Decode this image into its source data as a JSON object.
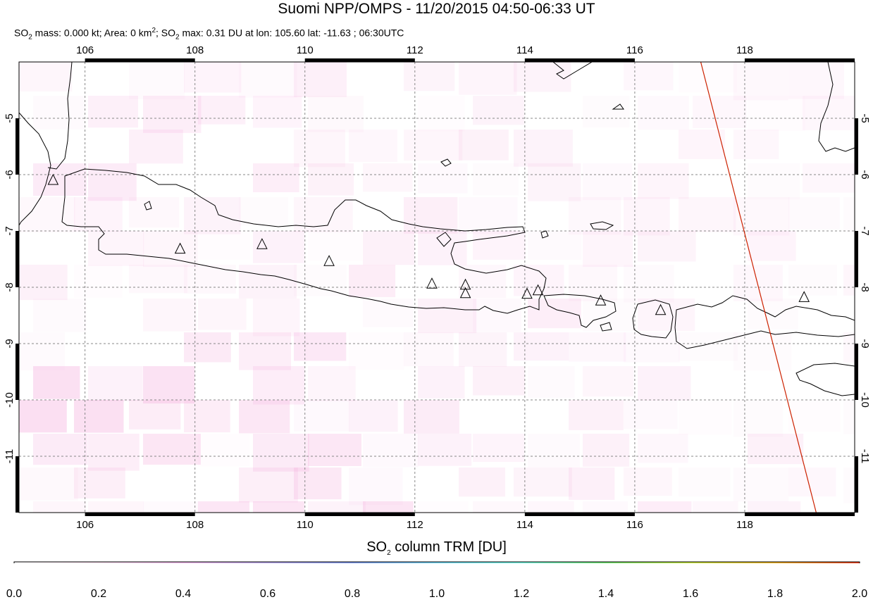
{
  "header": {
    "title": "Suomi NPP/OMPS - 11/20/2015 04:50-06:33 UT",
    "subtitle": {
      "p1": "SO",
      "s1": "2",
      "p2": " mass: 0.000 kt; Area: 0 km",
      "s2": "2",
      "p3": "; SO",
      "s3": "2",
      "p4": " max: 0.31 DU at lon: 105.60 lat: -11.63 ; 06:30UTC"
    }
  },
  "map": {
    "lon_range": [
      104.8,
      120.0
    ],
    "lat_range": [
      -12.0,
      -4.0
    ],
    "lon_ticks": [
      "106",
      "108",
      "110",
      "112",
      "114",
      "116",
      "118"
    ],
    "lon_tick_values": [
      106,
      108,
      110,
      112,
      114,
      116,
      118
    ],
    "lat_ticks": [
      "-5",
      "-6",
      "-7",
      "-8",
      "-9",
      "-10",
      "-11"
    ],
    "lat_tick_values": [
      -5,
      -6,
      -7,
      -8,
      -9,
      -10,
      -11
    ],
    "grid": true,
    "coastline_color": "#000000",
    "orbit_line_color": "#cc2200",
    "volcano_marker": "triangle-icon",
    "volcanoes": [
      {
        "lon": 105.42,
        "lat": -6.1
      },
      {
        "lon": 107.73,
        "lat": -7.32
      },
      {
        "lon": 109.22,
        "lat": -7.24
      },
      {
        "lon": 110.44,
        "lat": -7.54
      },
      {
        "lon": 112.31,
        "lat": -7.94
      },
      {
        "lon": 112.92,
        "lat": -7.96
      },
      {
        "lon": 112.92,
        "lat": -8.11
      },
      {
        "lon": 114.04,
        "lat": -8.12
      },
      {
        "lon": 114.24,
        "lat": -8.06
      },
      {
        "lon": 115.38,
        "lat": -8.24
      },
      {
        "lon": 116.47,
        "lat": -8.41
      },
      {
        "lon": 119.08,
        "lat": -8.18
      }
    ],
    "orbit_line": [
      [
        117.2,
        -4.0
      ],
      [
        119.3,
        -12.0
      ]
    ]
  },
  "colorbar": {
    "title_main": "SO",
    "title_sub": "2",
    "title_rest": " column TRM [DU]",
    "min": 0.0,
    "max": 2.0,
    "tick_labels": [
      "0.0",
      "0.2",
      "0.4",
      "0.6",
      "0.8",
      "1.0",
      "1.2",
      "1.4",
      "1.6",
      "1.8",
      "2.0"
    ],
    "tick_values": [
      0.0,
      0.2,
      0.4,
      0.6,
      0.8,
      1.0,
      1.2,
      1.4,
      1.6,
      1.8,
      2.0
    ],
    "stops": [
      "#ffffff",
      "#fbe3f1",
      "#f4b9ee",
      "#b9a8ee",
      "#7d98ee",
      "#6fd5f4",
      "#72f6e0",
      "#6ee86e",
      "#c9e83a",
      "#f2b21f",
      "#ef3b1b"
    ]
  }
}
